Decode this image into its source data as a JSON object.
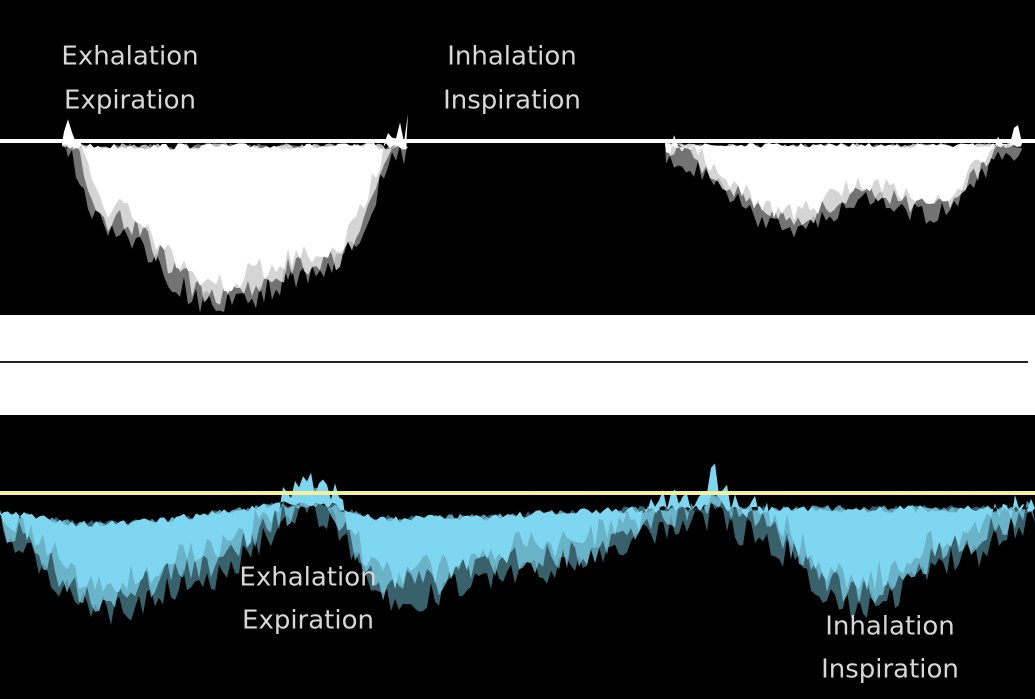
{
  "panels": [
    {
      "labels": [
        {
          "lines": [
            "Exhalation",
            "Expiration"
          ]
        },
        {
          "lines": [
            "Inhalation",
            "Inspiration"
          ]
        }
      ]
    },
    {
      "labels": [
        {
          "lines": [
            "Exhalation",
            "Expiration"
          ]
        },
        {
          "lines": [
            "Inhalation",
            "Inspiration"
          ]
        }
      ]
    }
  ]
}
